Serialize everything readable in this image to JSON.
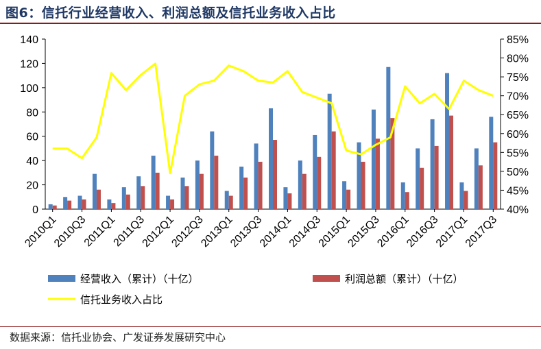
{
  "title": "图6：信托行业经营收入、利润总额及信托业务收入占比",
  "source": "数据来源：信托业协会、广发证券发展研究中心",
  "chart_data": {
    "type": "bar",
    "categories": [
      "2010Q1",
      "2010Q2",
      "2010Q3",
      "2010Q4",
      "2011Q1",
      "2011Q2",
      "2011Q3",
      "2011Q4",
      "2012Q1",
      "2012Q2",
      "2012Q3",
      "2012Q4",
      "2013Q1",
      "2013Q2",
      "2013Q3",
      "2013Q4",
      "2014Q1",
      "2014Q2",
      "2014Q3",
      "2014Q4",
      "2015Q1",
      "2015Q2",
      "2015Q3",
      "2015Q4",
      "2016Q1",
      "2016Q2",
      "2016Q3",
      "2016Q4",
      "2017Q1",
      "2017Q2",
      "2017Q3"
    ],
    "x_tick_labels": [
      "2010Q1",
      "2010Q3",
      "2011Q1",
      "2011Q3",
      "2012Q1",
      "2012Q3",
      "2013Q1",
      "2013Q3",
      "2014Q1",
      "2014Q3",
      "2015Q1",
      "2015Q3",
      "2016Q1",
      "2016Q3",
      "2017Q1",
      "2017Q3"
    ],
    "series": [
      {
        "name": "经营收入（累计）（十亿）",
        "type": "bar",
        "axis": "left",
        "color": "#4f81bd",
        "values": [
          4,
          10,
          11,
          29,
          8,
          18,
          27,
          44,
          11,
          26,
          40,
          64,
          15,
          35,
          54,
          83,
          18,
          40,
          61,
          95,
          23,
          55,
          82,
          117,
          22,
          50,
          74,
          112,
          22,
          50,
          76
        ]
      },
      {
        "name": "利润总额（累计）（十亿）",
        "type": "bar",
        "axis": "left",
        "color": "#c0504d",
        "values": [
          3,
          7,
          8,
          16,
          5,
          12,
          19,
          30,
          8,
          19,
          29,
          44,
          11,
          26,
          39,
          57,
          13,
          29,
          43,
          64,
          16,
          39,
          58,
          75,
          14,
          34,
          52,
          77,
          15,
          36,
          55
        ]
      },
      {
        "name": "信托业务收入占比",
        "type": "line",
        "axis": "right",
        "color": "#ffff00",
        "values": [
          56.0,
          56.0,
          53.5,
          59.0,
          76.0,
          71.5,
          75.5,
          78.5,
          49.5,
          70.0,
          73.0,
          74.0,
          78.0,
          76.5,
          74.0,
          73.5,
          76.5,
          71.0,
          69.5,
          68.0,
          55.5,
          54.5,
          57.0,
          59.0,
          72.5,
          68.0,
          70.5,
          66.5,
          74.0,
          71.5,
          70.0
        ]
      }
    ],
    "y_left": {
      "min": 0,
      "max": 140,
      "ticks": [
        0,
        20,
        40,
        60,
        80,
        100,
        120,
        140
      ]
    },
    "y_right": {
      "min": 40,
      "max": 85,
      "ticks": [
        "40%",
        "45%",
        "50%",
        "55%",
        "60%",
        "65%",
        "70%",
        "75%",
        "80%",
        "85%"
      ]
    },
    "legend": {
      "bar1": "经营收入（累计）（十亿）",
      "bar2": "利润总额（累计）（十亿）",
      "line": "信托业务收入占比"
    }
  }
}
